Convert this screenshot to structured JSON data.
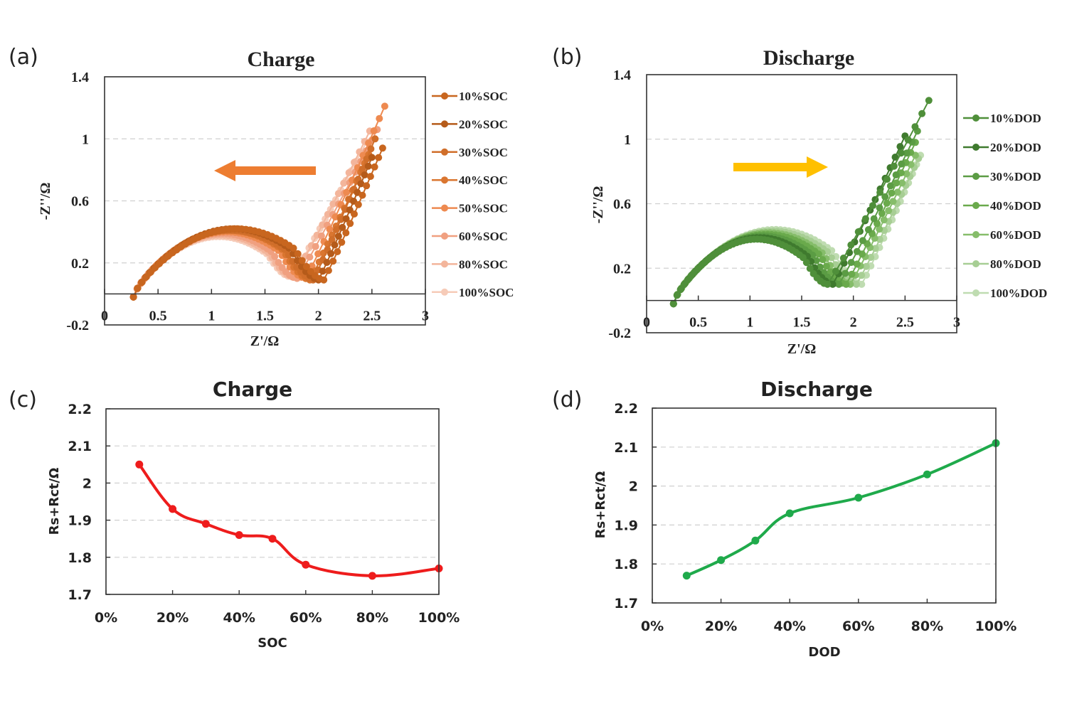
{
  "panels": {
    "a": {
      "label": "(a)"
    },
    "b": {
      "label": "(b)"
    },
    "c": {
      "label": "(c)"
    },
    "d": {
      "label": "(d)"
    }
  },
  "chart_data": [
    {
      "id": "a",
      "type": "scatter",
      "title": "Charge",
      "xlabel": "Z'/Ω",
      "ylabel": "-Z''/Ω",
      "xlim": [
        0,
        3
      ],
      "ylim": [
        -0.2,
        1.4
      ],
      "xticks": [
        "0",
        "0.5",
        "1",
        "1.5",
        "2",
        "2.5",
        "3"
      ],
      "yticks": [
        "-0.2",
        "0.2",
        "0.6",
        "1",
        "1.4"
      ],
      "ygrid": [
        0.2,
        0.6,
        1.0
      ],
      "legend_position": "right",
      "annotation": {
        "type": "arrow",
        "direction": "left",
        "color": "#ED7D31"
      },
      "series": [
        {
          "name": "10%SOC",
          "color": "#C8661F",
          "rs": 0.27,
          "min_x": 2.05,
          "min_y": 0.09,
          "peak_y": 0.42,
          "end": [
            2.6,
            0.94
          ]
        },
        {
          "name": "20%SOC",
          "color": "#B55B1A",
          "rs": 0.27,
          "min_x": 2.0,
          "min_y": 0.09,
          "peak_y": 0.42,
          "end": [
            2.5,
            0.88
          ]
        },
        {
          "name": "30%SOC",
          "color": "#D06E2A",
          "rs": 0.27,
          "min_x": 1.95,
          "min_y": 0.09,
          "peak_y": 0.41,
          "end": [
            2.53,
            1.0
          ]
        },
        {
          "name": "40%SOC",
          "color": "#DA7630",
          "rs": 0.27,
          "min_x": 1.92,
          "min_y": 0.09,
          "peak_y": 0.41,
          "end": [
            2.47,
            0.9
          ]
        },
        {
          "name": "50%SOC",
          "color": "#EE8A50",
          "rs": 0.27,
          "min_x": 1.88,
          "min_y": 0.1,
          "peak_y": 0.4,
          "end": [
            2.62,
            1.21
          ]
        },
        {
          "name": "60%SOC",
          "color": "#F0A080",
          "rs": 0.27,
          "min_x": 1.8,
          "min_y": 0.1,
          "peak_y": 0.39,
          "end": [
            2.55,
            1.06
          ]
        },
        {
          "name": "80%SOC",
          "color": "#F3B59B",
          "rs": 0.27,
          "min_x": 1.77,
          "min_y": 0.11,
          "peak_y": 0.38,
          "end": [
            2.48,
            1.05
          ]
        },
        {
          "name": "100%SOC",
          "color": "#F6CBB8",
          "rs": 0.27,
          "min_x": 1.75,
          "min_y": 0.11,
          "peak_y": 0.37,
          "end": [
            2.45,
            0.98
          ]
        }
      ]
    },
    {
      "id": "b",
      "type": "scatter",
      "title": "Discharge",
      "xlabel": "Z'/Ω",
      "ylabel": "-Z''/Ω",
      "xlim": [
        0,
        3
      ],
      "ylim": [
        -0.2,
        1.4
      ],
      "xticks": [
        "0",
        "0.5",
        "1",
        "1.5",
        "2",
        "2.5",
        "3"
      ],
      "yticks": [
        "-0.2",
        "0.2",
        "0.6",
        "1",
        "1.4"
      ],
      "ygrid": [
        0.2,
        0.6,
        1.0
      ],
      "legend_position": "right",
      "annotation": {
        "type": "arrow",
        "direction": "right",
        "color": "#FFC000"
      },
      "series": [
        {
          "name": "10%DOD",
          "color": "#4F8F3A",
          "rs": 0.26,
          "min_x": 1.75,
          "min_y": 0.1,
          "peak_y": 0.38,
          "end": [
            2.73,
            1.24
          ]
        },
        {
          "name": "20%DOD",
          "color": "#3F7A2E",
          "rs": 0.26,
          "min_x": 1.8,
          "min_y": 0.1,
          "peak_y": 0.39,
          "end": [
            2.5,
            1.02
          ]
        },
        {
          "name": "30%DOD",
          "color": "#5B9C44",
          "rs": 0.26,
          "min_x": 1.86,
          "min_y": 0.1,
          "peak_y": 0.4,
          "end": [
            2.62,
            1.05
          ]
        },
        {
          "name": "40%DOD",
          "color": "#6AAA4C",
          "rs": 0.26,
          "min_x": 1.93,
          "min_y": 0.1,
          "peak_y": 0.41,
          "end": [
            2.6,
            0.98
          ]
        },
        {
          "name": "60%DOD",
          "color": "#86BD6A",
          "rs": 0.26,
          "min_x": 1.97,
          "min_y": 0.1,
          "peak_y": 0.42,
          "end": [
            2.6,
            0.9
          ]
        },
        {
          "name": "80%DOD",
          "color": "#A7CE94",
          "rs": 0.26,
          "min_x": 2.03,
          "min_y": 0.1,
          "peak_y": 0.43,
          "end": [
            2.63,
            0.88
          ]
        },
        {
          "name": "100%DOD",
          "color": "#BFDCB1",
          "rs": 0.26,
          "min_x": 2.08,
          "min_y": 0.1,
          "peak_y": 0.44,
          "end": [
            2.65,
            0.9
          ]
        }
      ]
    },
    {
      "id": "c",
      "type": "line",
      "title": "Charge",
      "xlabel": "SOC",
      "ylabel": "Rs+Rct/Ω",
      "xlim": [
        0,
        100
      ],
      "ylim": [
        1.7,
        2.2
      ],
      "xticks": [
        "0%",
        "20%",
        "40%",
        "60%",
        "80%",
        "100%"
      ],
      "yticks": [
        "1.7",
        "1.8",
        "1.9",
        "2",
        "2.1",
        "2.2"
      ],
      "ygrid": [
        1.8,
        1.9,
        2.0,
        2.1
      ],
      "grid": true,
      "color": "#EE1C1C",
      "x": [
        10,
        20,
        30,
        40,
        50,
        60,
        80,
        100
      ],
      "values": [
        2.05,
        1.93,
        1.89,
        1.86,
        1.85,
        1.78,
        1.75,
        1.77
      ]
    },
    {
      "id": "d",
      "type": "line",
      "title": "Discharge",
      "xlabel": "DOD",
      "ylabel": "Rs+Rct/Ω",
      "xlim": [
        0,
        100
      ],
      "ylim": [
        1.7,
        2.2
      ],
      "xticks": [
        "0%",
        "20%",
        "40%",
        "60%",
        "80%",
        "100%"
      ],
      "yticks": [
        "1.7",
        "1.8",
        "1.9",
        "2",
        "2.1",
        "2.2"
      ],
      "ygrid": [
        1.8,
        1.9,
        2.0,
        2.1
      ],
      "grid": true,
      "color": "#1FAA4B",
      "x": [
        10,
        20,
        30,
        40,
        60,
        80,
        100
      ],
      "values": [
        1.77,
        1.81,
        1.86,
        1.93,
        1.97,
        2.03,
        2.11
      ]
    }
  ]
}
